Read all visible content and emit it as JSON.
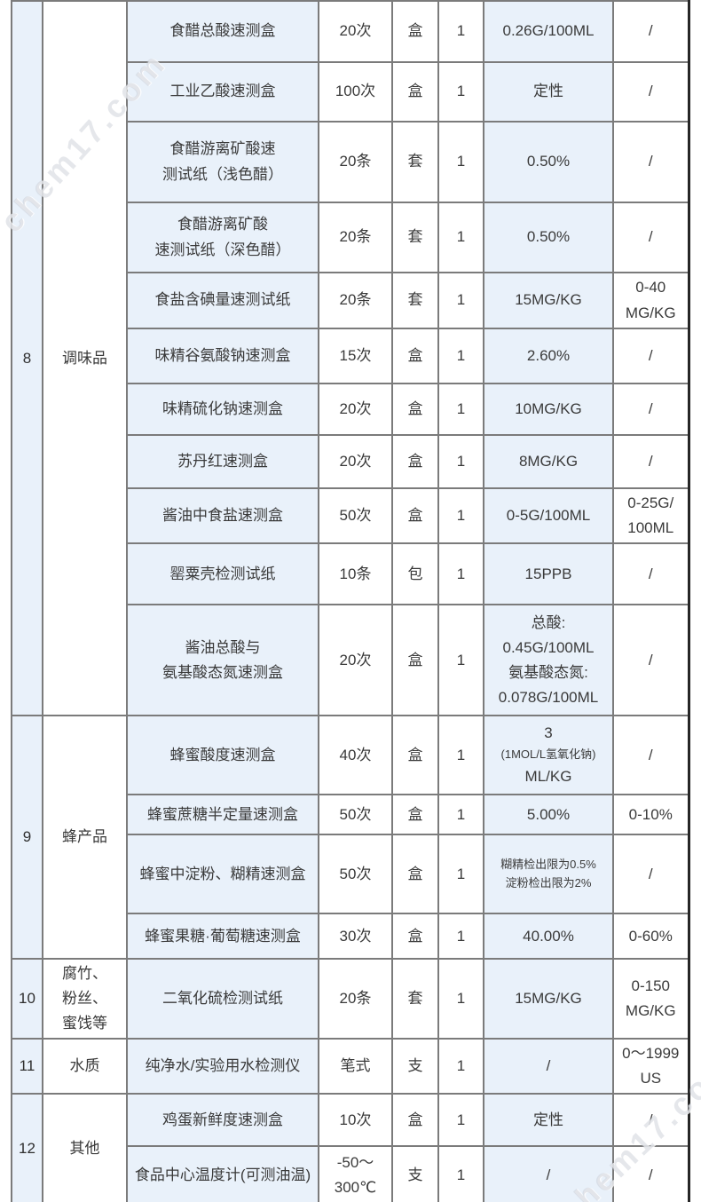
{
  "watermark": {
    "text": "chem17.com"
  },
  "colors": {
    "accent_cell_bg": "#e9f1fa",
    "inner_border": "#7b7b7b",
    "outer_border": "#262626",
    "text": "#3a3a3a"
  },
  "table": {
    "groups": [
      {
        "no": "8",
        "category": "调味品",
        "rows": [
          {
            "name": "食醋总酸速测盒",
            "qty": "20次",
            "unit": "盒",
            "count": "1",
            "value": "0.26G/100ML",
            "range": "/"
          },
          {
            "name": "工业乙酸速测盒",
            "qty": "100次",
            "unit": "盒",
            "count": "1",
            "value": "定性",
            "range": "/"
          },
          {
            "name": "食醋游离矿酸速\n测试纸（浅色醋）",
            "qty": "20条",
            "unit": "套",
            "count": "1",
            "value": "0.50%",
            "range": "/"
          },
          {
            "name": "食醋游离矿酸\n速测试纸（深色醋）",
            "qty": "20条",
            "unit": "套",
            "count": "1",
            "value": "0.50%",
            "range": "/"
          },
          {
            "name": "食盐含碘量速测试纸",
            "qty": "20条",
            "unit": "套",
            "count": "1",
            "value": "15MG/KG",
            "range": "0-40\nMG/KG"
          },
          {
            "name": "味精谷氨酸钠速测盒",
            "qty": "15次",
            "unit": "盒",
            "count": "1",
            "value": "2.60%",
            "range": "/"
          },
          {
            "name": "味精硫化钠速测盒",
            "qty": "20次",
            "unit": "盒",
            "count": "1",
            "value": "10MG/KG",
            "range": "/"
          },
          {
            "name": "苏丹红速测盒",
            "qty": "20次",
            "unit": "盒",
            "count": "1",
            "value": "8MG/KG",
            "range": "/"
          },
          {
            "name": "酱油中食盐速测盒",
            "qty": "50次",
            "unit": "盒",
            "count": "1",
            "value": "0-5G/100ML",
            "range": "0-25G/\n100ML"
          },
          {
            "name": "罂粟壳检测试纸",
            "qty": "10条",
            "unit": "包",
            "count": "1",
            "value": "15PPB",
            "range": "/"
          },
          {
            "name": "酱油总酸与\n氨基酸态氮速测盒",
            "qty": "20次",
            "unit": "盒",
            "count": "1",
            "value": "总酸:\n0.45G/100ML\n氨基酸态氮:\n0.078G/100ML",
            "range": "/"
          }
        ]
      },
      {
        "no": "9",
        "category": "蜂产品",
        "rows": [
          {
            "name": "蜂蜜酸度速测盒",
            "qty": "40次",
            "unit": "盒",
            "count": "1",
            "value": [
              {
                "t": "3"
              },
              {
                "t": "(1MOL/L氢氧化钠)",
                "small": true
              },
              {
                "t": "ML/KG"
              }
            ],
            "range": "/"
          },
          {
            "name": "蜂蜜蔗糖半定量速测盒",
            "qty": "50次",
            "unit": "盒",
            "count": "1",
            "value": "5.00%",
            "range": "0-10%"
          },
          {
            "name": "蜂蜜中淀粉、糊精速测盒",
            "qty": "50次",
            "unit": "盒",
            "count": "1",
            "value": [
              {
                "t": "糊精检出限为0.5%",
                "small": true
              },
              {
                "t": "淀粉检出限为2%",
                "small": true
              }
            ],
            "range": "/"
          },
          {
            "name": "蜂蜜果糖·葡萄糖速测盒",
            "qty": "30次",
            "unit": "盒",
            "count": "1",
            "value": "40.00%",
            "range": "0-60%"
          }
        ]
      },
      {
        "no": "10",
        "category": "腐竹、\n粉丝、\n蜜饯等",
        "rows": [
          {
            "name": "二氧化硫检测试纸",
            "qty": "20条",
            "unit": "套",
            "count": "1",
            "value": "15MG/KG",
            "range": "0-150\nMG/KG"
          }
        ]
      },
      {
        "no": "11",
        "category": "水质",
        "rows": [
          {
            "name": "纯净水/实验用水检测仪",
            "qty": "笔式",
            "unit": "支",
            "count": "1",
            "value": "/",
            "range": "0～1999\nUS"
          }
        ]
      },
      {
        "no": "12",
        "category": "其他",
        "rows": [
          {
            "name": "鸡蛋新鲜度速测盒",
            "qty": "10次",
            "unit": "盒",
            "count": "1",
            "value": "定性",
            "range": "/"
          },
          {
            "name": "食品中心温度计(可测油温)",
            "qty": "-50～\n300℃",
            "unit": "支",
            "count": "1",
            "value": "/",
            "range": "/"
          }
        ]
      }
    ]
  }
}
